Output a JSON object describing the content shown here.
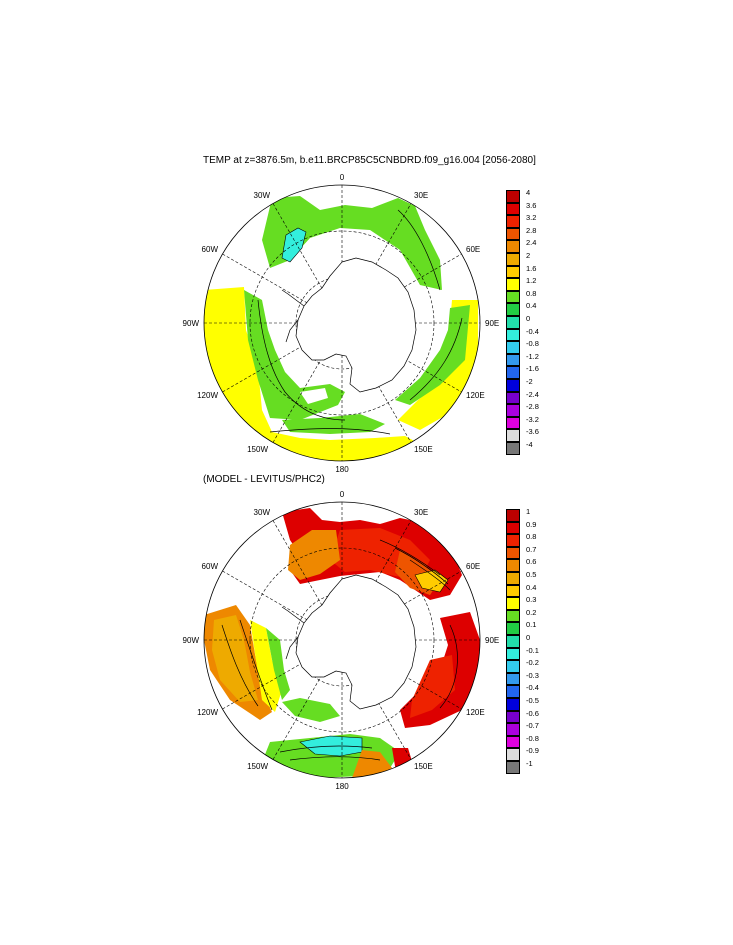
{
  "panels": [
    {
      "title": "TEMP at z=3876.5m, b.e11.BRCP85C5CNBDRD.f09_g16.004 [2056-2080]",
      "lon_labels": {
        "top": "0",
        "bottom": "180",
        "left": "90W",
        "right": "90E",
        "w30": "30W",
        "w60": "60W",
        "w120": "120W",
        "w150": "150W",
        "e30": "30E",
        "e60": "60E",
        "e120": "120E",
        "e150": "150E"
      },
      "colorbar": {
        "labels": [
          "4",
          "3.6",
          "3.2",
          "2.8",
          "2.4",
          "2",
          "1.6",
          "1.2",
          "0.8",
          "0.4",
          "0",
          "-0.4",
          "-0.8",
          "-1.2",
          "-1.6",
          "-2",
          "-2.4",
          "-2.8",
          "-3.2",
          "-3.6",
          "-4"
        ],
        "colors": [
          "#bb0000",
          "#dd0000",
          "#ee2200",
          "#ee5500",
          "#ee8800",
          "#eeaa00",
          "#ffcc00",
          "#ffff00",
          "#66dd22",
          "#22cc44",
          "#22ddaa",
          "#33eedd",
          "#33ccee",
          "#3399ee",
          "#2266ee",
          "#0000dd",
          "#7700cc",
          "#aa00dd",
          "#dd00dd",
          "#dddddd",
          "#777777"
        ]
      }
    },
    {
      "title": "(MODEL - LEVITUS/PHC2)",
      "lon_labels": {
        "top": "0",
        "bottom": "180",
        "left": "90W",
        "right": "90E",
        "w30": "30W",
        "w60": "60W",
        "w120": "120W",
        "w150": "150W",
        "e30": "30E",
        "e60": "60E",
        "e120": "120E",
        "e150": "150E"
      },
      "colorbar": {
        "labels": [
          "1",
          "0.9",
          "0.8",
          "0.7",
          "0.6",
          "0.5",
          "0.4",
          "0.3",
          "0.2",
          "0.1",
          "0",
          "-0.1",
          "-0.2",
          "-0.3",
          "-0.4",
          "-0.5",
          "-0.6",
          "-0.7",
          "-0.8",
          "-0.9",
          "-1"
        ],
        "colors": [
          "#bb0000",
          "#dd0000",
          "#ee2200",
          "#ee5500",
          "#ee8800",
          "#eeaa00",
          "#ffcc00",
          "#ffff00",
          "#66dd22",
          "#22cc44",
          "#22ddaa",
          "#33eedd",
          "#33ccee",
          "#3399ee",
          "#2266ee",
          "#0000dd",
          "#7700cc",
          "#aa00dd",
          "#dd00dd",
          "#dddddd",
          "#777777"
        ]
      }
    }
  ]
}
